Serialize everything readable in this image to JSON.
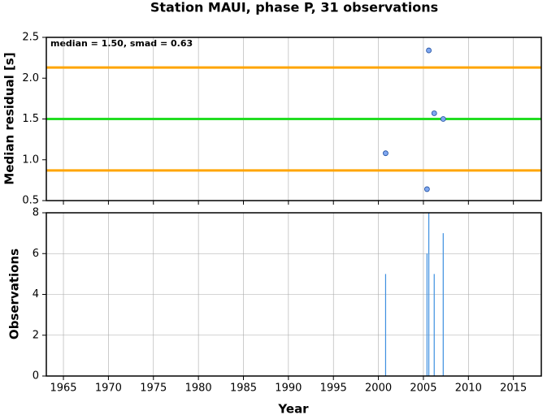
{
  "chart_data": [
    {
      "type": "scatter",
      "title": "Station MAUI, phase P, 31 observations",
      "ylabel": "Median residual [s]",
      "annotation": "median = 1.50, smad = 0.63",
      "x": [
        2000.8,
        2005.4,
        2005.6,
        2006.2,
        2007.2
      ],
      "values": [
        1.08,
        0.64,
        2.34,
        1.57,
        1.5
      ],
      "color": "#7fa7f0",
      "hlines": [
        {
          "value": 2.13,
          "color": "#ffa500"
        },
        {
          "value": 1.5,
          "color": "#22dd22"
        },
        {
          "value": 0.87,
          "color": "#ffa500"
        }
      ],
      "xlim": [
        1963.1,
        2018.1
      ],
      "xticks": [
        1965,
        1970,
        1975,
        1980,
        1985,
        1990,
        1995,
        2000,
        2005,
        2010,
        2015
      ],
      "ylim": [
        0.5,
        2.5
      ],
      "yticks": [
        0.5,
        {
          "value": 1,
          "label": "1.0"
        },
        1.5,
        {
          "value": 2,
          "label": "2.0"
        },
        2.5
      ],
      "grid": true
    },
    {
      "type": "bar",
      "ylabel": "Observations",
      "xlabel": "Year",
      "x": [
        2000.8,
        2005.4,
        2005.6,
        2006.2,
        2007.2
      ],
      "values": [
        5,
        6,
        8,
        5,
        7
      ],
      "color": "#3d8fe0",
      "xlim": [
        1963.1,
        2018.1
      ],
      "xticks": [
        1965,
        1970,
        1975,
        1980,
        1985,
        1990,
        1995,
        2000,
        2005,
        2010,
        2015
      ],
      "ylim": [
        0,
        8
      ],
      "yticks": [
        0,
        2,
        4,
        6,
        8
      ],
      "grid": true
    }
  ]
}
